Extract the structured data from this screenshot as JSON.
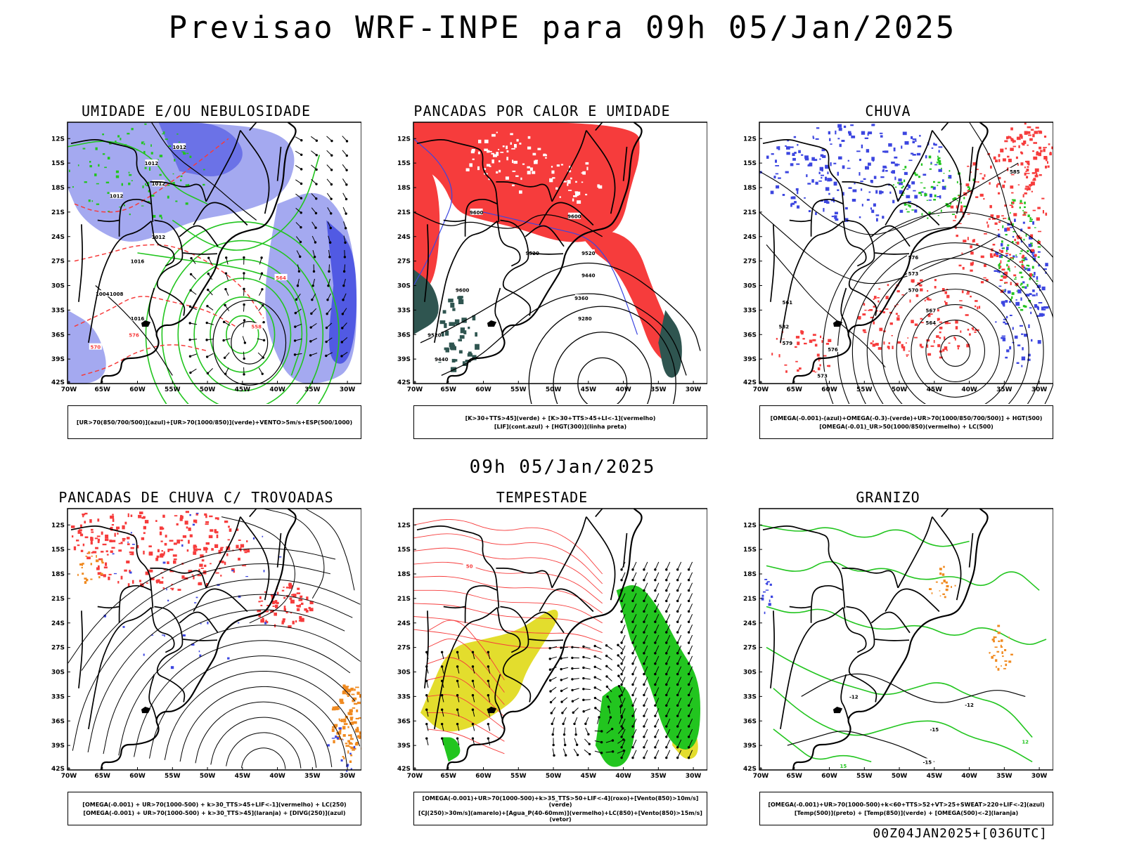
{
  "header": {
    "title": "Previsao WRF-INPE  para 09h 05/Jan/2025",
    "subtitle": "09h 05/Jan/2025",
    "footer": "00Z04JAN2025+[036UTC]"
  },
  "axes": {
    "lat_labels": [
      "12S",
      "15S",
      "18S",
      "21S",
      "24S",
      "27S",
      "30S",
      "33S",
      "36S",
      "39S",
      "42S"
    ],
    "lon_labels": [
      "70W",
      "65W",
      "60W",
      "55W",
      "50W",
      "45W",
      "40W",
      "35W",
      "30W"
    ]
  },
  "colors": {
    "humidity_blue": "#9aa0ee",
    "deep_blue": "#3c46e0",
    "green": "#22c51f",
    "red": "#f63c3c",
    "dark_teal": "#2f5550",
    "yellow": "#e3dd2d",
    "orange": "#f08a20",
    "black": "#000000"
  },
  "panels": [
    {
      "id": "umidade",
      "title": "UMIDADE E/OU NEBULOSIDADE",
      "legend": [
        "[UR>70(850/700/500)](azul)+[UR>70(1000/850)](verde)+VENTO>5m/s+ESP(500/1000)"
      ],
      "labels": [
        "1012",
        "1012",
        "1012",
        "1012",
        "1012",
        "1016",
        "1008",
        "1004",
        "1016",
        "576",
        "570",
        "564",
        "558"
      ]
    },
    {
      "id": "pancadas-calor",
      "title": "PANCADAS POR CALOR E UMIDADE",
      "legend": [
        "[K>30+TTS>45](verde) + [K>30+TTS>45+LI<-1](vermelho)",
        "[LIF](cont.azul) + [HGT(300)](linha preta)"
      ],
      "labels": [
        "9600",
        "9520",
        "9600",
        "9520",
        "9440",
        "9360",
        "9280",
        "9600",
        "9520",
        "9440"
      ]
    },
    {
      "id": "chuva",
      "title": "CHUVA",
      "legend": [
        "[OMEGA(-0.001)-(azul)+OMEGA(-0.3)-(verde)+UR>70(1000/850/700/500)] + HGT(500)",
        "[OMEGA(-0.01)_UR>50(1000/850)(vermelho) + LC(500)"
      ],
      "labels": [
        "585",
        "576",
        "573",
        "570",
        "567",
        "564",
        "561",
        "582",
        "579",
        "576",
        "573",
        "570"
      ]
    },
    {
      "id": "pancadas-trovoadas",
      "title": "PANCADAS DE CHUVA C/ TROVOADAS",
      "legend": [
        "[OMEGA(-0.001) + UR>70(1000-500) + k>30_TTS>45+LIF<-1](vermelho) + LC(250)",
        "[OMEGA(-0.001) + UR>70(1000-500) + k>30_TTS>45](laranja) + [DIVG(250)](azul)"
      ],
      "labels": []
    },
    {
      "id": "tempestade",
      "title": "TEMPESTADE",
      "legend": [
        "[OMEGA(-0.001)+UR>70(1000-500)+k>35_TTS>50+LIF<-4](roxo)+[Vento(850)>10m/s](verde)",
        "[CJ(250)>30m/s](amarelo)+[Agua_P(40-60mm)](vermelho)+LC(850)+[Vento(850)>15m/s](vetor)"
      ],
      "labels": [
        "50"
      ]
    },
    {
      "id": "granizo",
      "title": "GRANIZO",
      "legend": [
        "[OMEGA(-0.001)+UR>70(1000-500)+k<60+TTS>52+VT>25+SWEAT>220+LIF<-2](azul)",
        "[Temp(500)](preto) + [Temp(850)](verde) + [OMEGA(500)<-2](laranja)"
      ],
      "labels": [
        "-12",
        "-12",
        "-15",
        "-15",
        "15",
        "12"
      ]
    }
  ]
}
